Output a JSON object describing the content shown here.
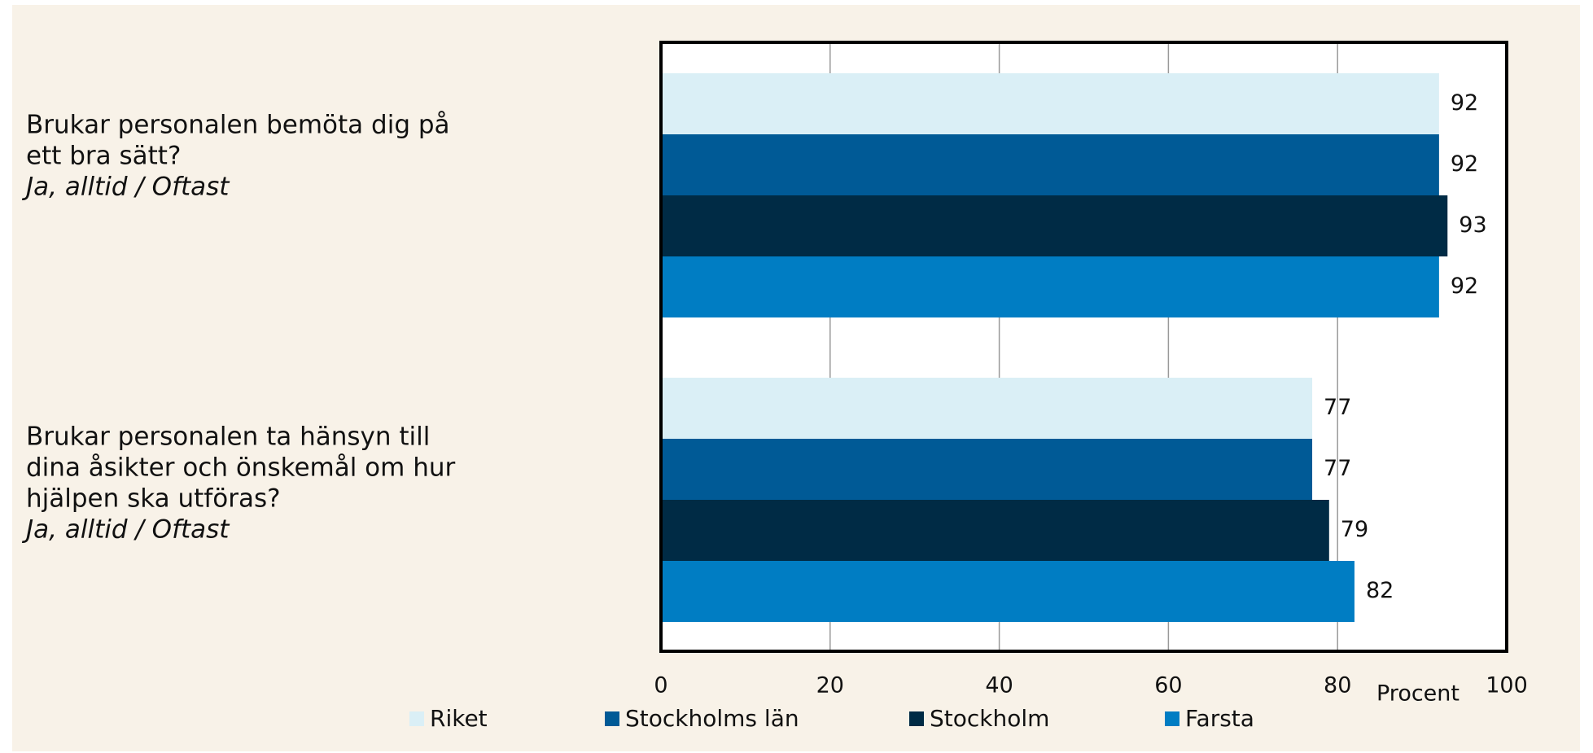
{
  "chart_data": {
    "type": "bar",
    "orientation": "horizontal",
    "categories": [
      [
        "Brukar personalen bemöta dig på",
        "ett bra sätt?",
        "Ja, alltid / Oftast"
      ],
      [
        "Brukar personalen ta hänsyn till",
        "dina åsikter och önskemål om hur",
        "hjälpen ska utföras?",
        "Ja, alltid / Oftast"
      ]
    ],
    "series": [
      {
        "name": "Riket",
        "color": "#daeff6",
        "values": [
          92,
          77
        ]
      },
      {
        "name": "Stockholms län",
        "color": "#005a96",
        "values": [
          92,
          77
        ]
      },
      {
        "name": "Stockholm",
        "color": "#002b45",
        "values": [
          93,
          79
        ]
      },
      {
        "name": "Farsta",
        "color": "#007dc3",
        "values": [
          92,
          82
        ]
      }
    ],
    "xlabel": "Procent",
    "xlim": [
      0,
      100
    ],
    "xticks": [
      0,
      20,
      40,
      60,
      80,
      100
    ],
    "grid": true,
    "legend": "bottom"
  }
}
